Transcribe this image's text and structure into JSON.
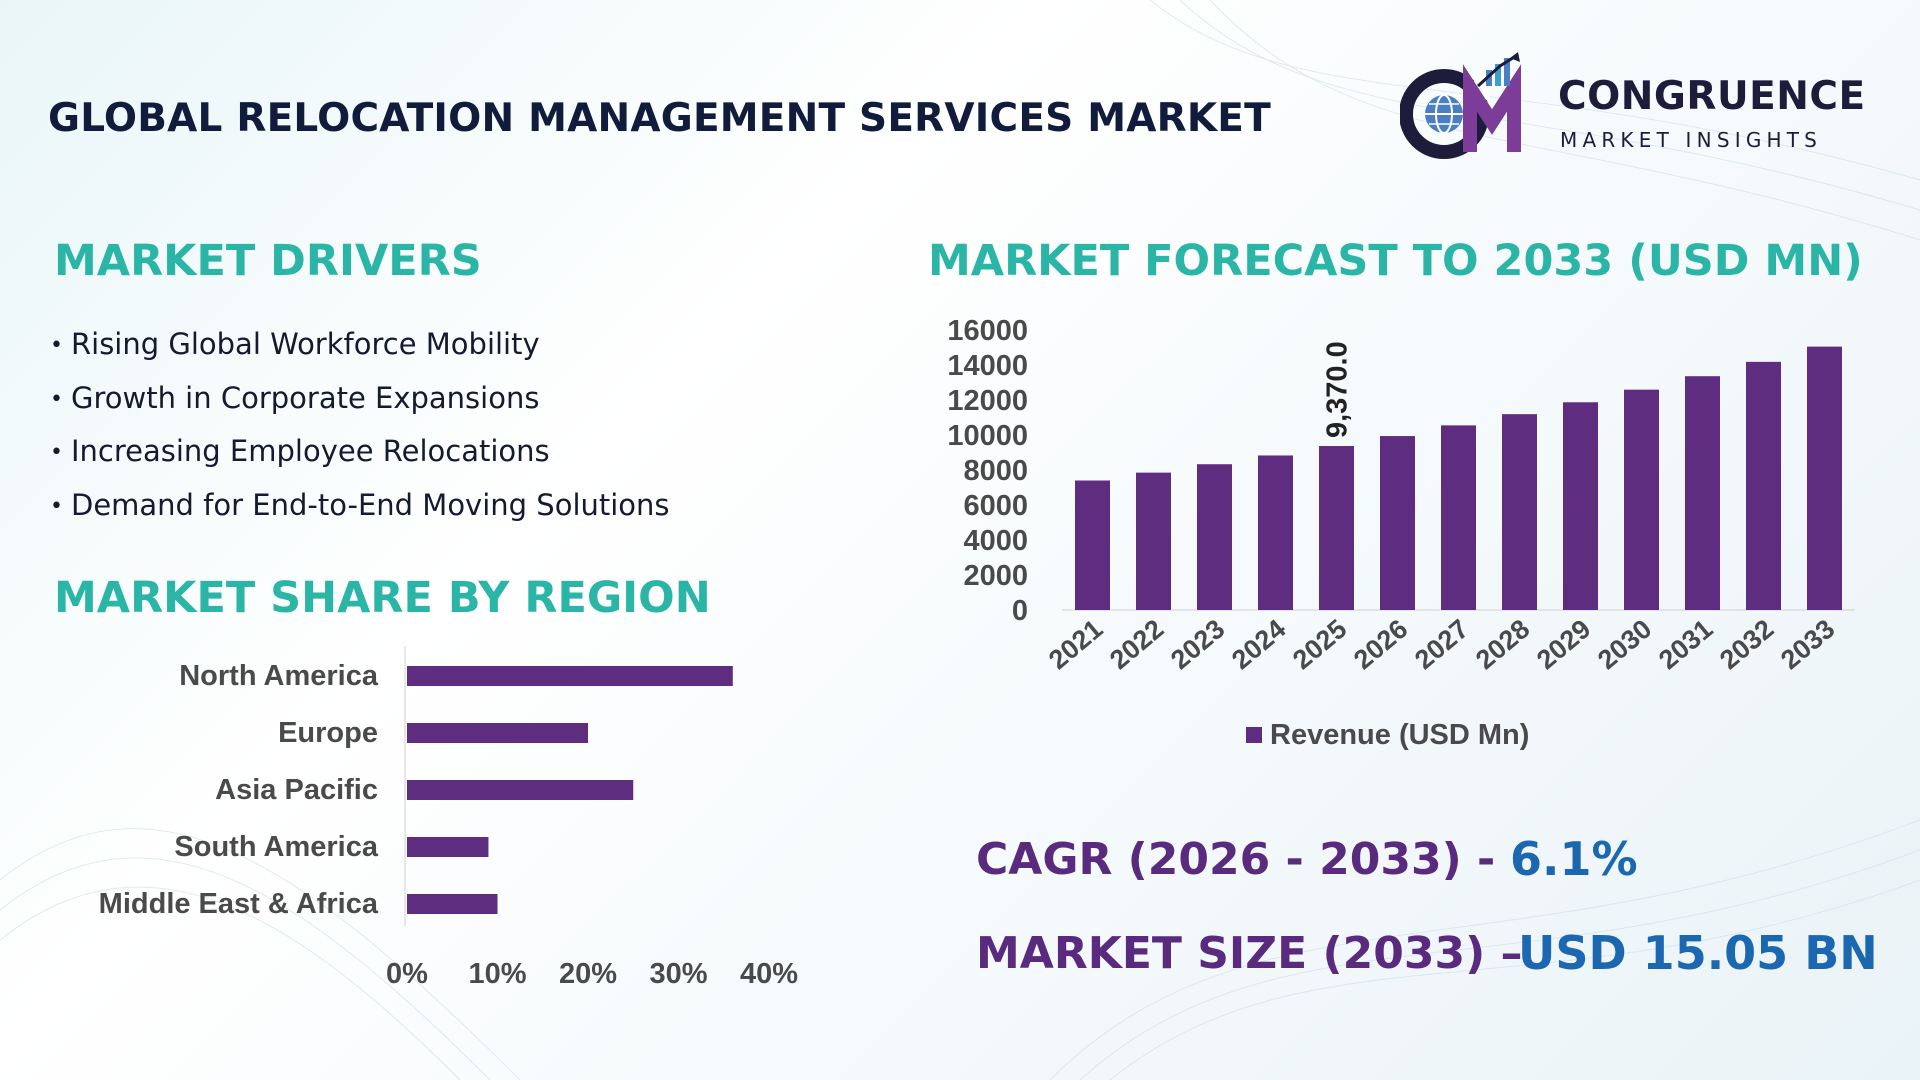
{
  "header": {
    "title": "GLOBAL RELOCATION MANAGEMENT SERVICES MARKET",
    "logo_name": "CONGRUENCE",
    "logo_subtitle": "MARKET INSIGHTS",
    "logo_initials": "CM",
    "logo_icon": "globe-bar-chart-icon"
  },
  "drivers": {
    "heading": "MARKET DRIVERS",
    "items": [
      "Rising Global Workforce Mobility",
      "Growth in Corporate Expansions",
      "Increasing Employee Relocations",
      "Demand for End-to-End Moving Solutions"
    ]
  },
  "region": {
    "heading": "MARKET SHARE BY REGION"
  },
  "forecast": {
    "heading": "MARKET FORECAST TO 2033 (USD MN)"
  },
  "stats": {
    "cagr_label": "CAGR (2026 - 2033) -",
    "cagr_value": "6.1%",
    "size_label": "MARKET SIZE (2033) –",
    "size_value": "USD 15.05 BN"
  },
  "colors": {
    "bar": "#5f2d7f",
    "heading": "#2bb5a7",
    "stat_label": "#5a2a7e",
    "stat_value": "#1b67b0",
    "title": "#111b3b"
  },
  "chart_data": [
    {
      "type": "bar",
      "orientation": "horizontal",
      "categories": [
        "North America",
        "Europe",
        "Asia Pacific",
        "South America",
        "Middle East & Africa"
      ],
      "values": [
        36,
        20,
        25,
        9,
        10
      ],
      "unit": "%",
      "xlim": [
        0,
        40
      ],
      "xticks": [
        "0%",
        "10%",
        "20%",
        "30%",
        "40%"
      ],
      "grid": false
    },
    {
      "type": "bar",
      "categories": [
        "2021",
        "2022",
        "2023",
        "2024",
        "2025",
        "2026",
        "2027",
        "2028",
        "2029",
        "2030",
        "2031",
        "2032",
        "2033"
      ],
      "series": [
        {
          "name": "Revenue (USD Mn)",
          "values": [
            7400,
            7850,
            8330,
            8830,
            9370,
            9940,
            10550,
            11190,
            11870,
            12590,
            13360,
            14180,
            15050
          ]
        }
      ],
      "data_labels": [
        {
          "category": "2025",
          "text": "9,370.0"
        }
      ],
      "ylim": [
        0,
        16000
      ],
      "yticks": [
        "0",
        "2000",
        "4000",
        "6000",
        "8000",
        "10000",
        "12000",
        "14000",
        "16000"
      ],
      "legend": "bottom",
      "grid": false
    }
  ]
}
